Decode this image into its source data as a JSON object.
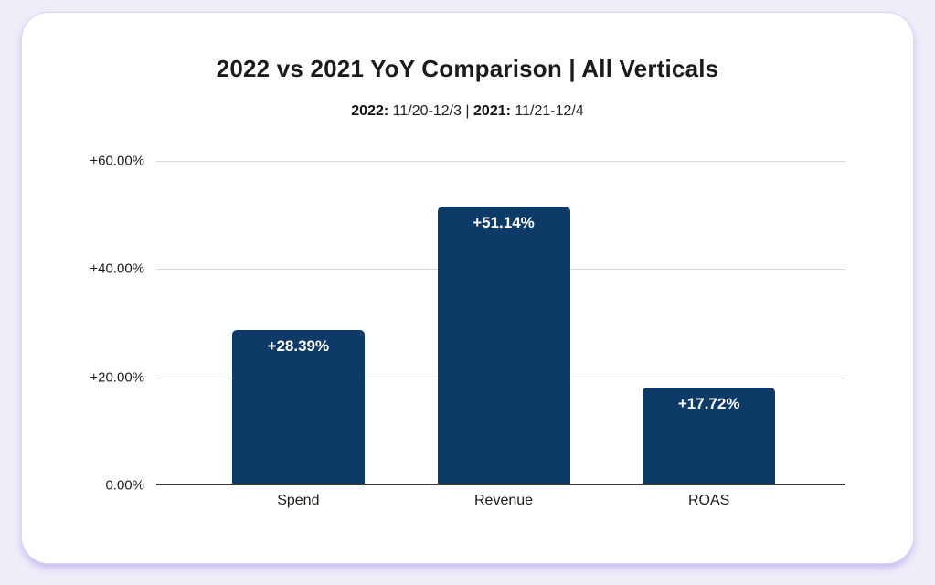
{
  "page": {
    "background_color": "#f0edf9",
    "card_background": "#ffffff",
    "card_border_color": "#ddd5f4"
  },
  "header": {
    "title": "2022 vs 2021 YoY Comparison | All Verticals",
    "subtitle_parts": [
      {
        "text": "2022:",
        "bold": true
      },
      {
        "text": " 11/20-12/3 | ",
        "bold": false
      },
      {
        "text": "2021:",
        "bold": true
      },
      {
        "text": " 11/21-12/4",
        "bold": false
      }
    ]
  },
  "chart_data": {
    "type": "bar",
    "title": "2022 vs 2021 YoY Comparison | All Verticals",
    "subtitle": "2022: 11/20-12/3 | 2021: 11/21-12/4",
    "categories": [
      "Spend",
      "Revenue",
      "ROAS"
    ],
    "values": [
      28.39,
      51.14,
      17.72
    ],
    "data_labels": [
      "+28.39%",
      "+51.14%",
      "+17.72%"
    ],
    "bar_color": "#0d3a66",
    "label_text_color": "#ffffff",
    "xlabel": "",
    "ylabel": "",
    "ylim": [
      0,
      60
    ],
    "grid": true,
    "legend": "none",
    "y_axis": {
      "ticks": [
        {
          "label": "0.00%",
          "value": 0
        },
        {
          "label": "+20.00%",
          "value": 20
        },
        {
          "label": "+40.00%",
          "value": 40
        },
        {
          "label": "+60.00%",
          "value": 60
        }
      ]
    }
  }
}
